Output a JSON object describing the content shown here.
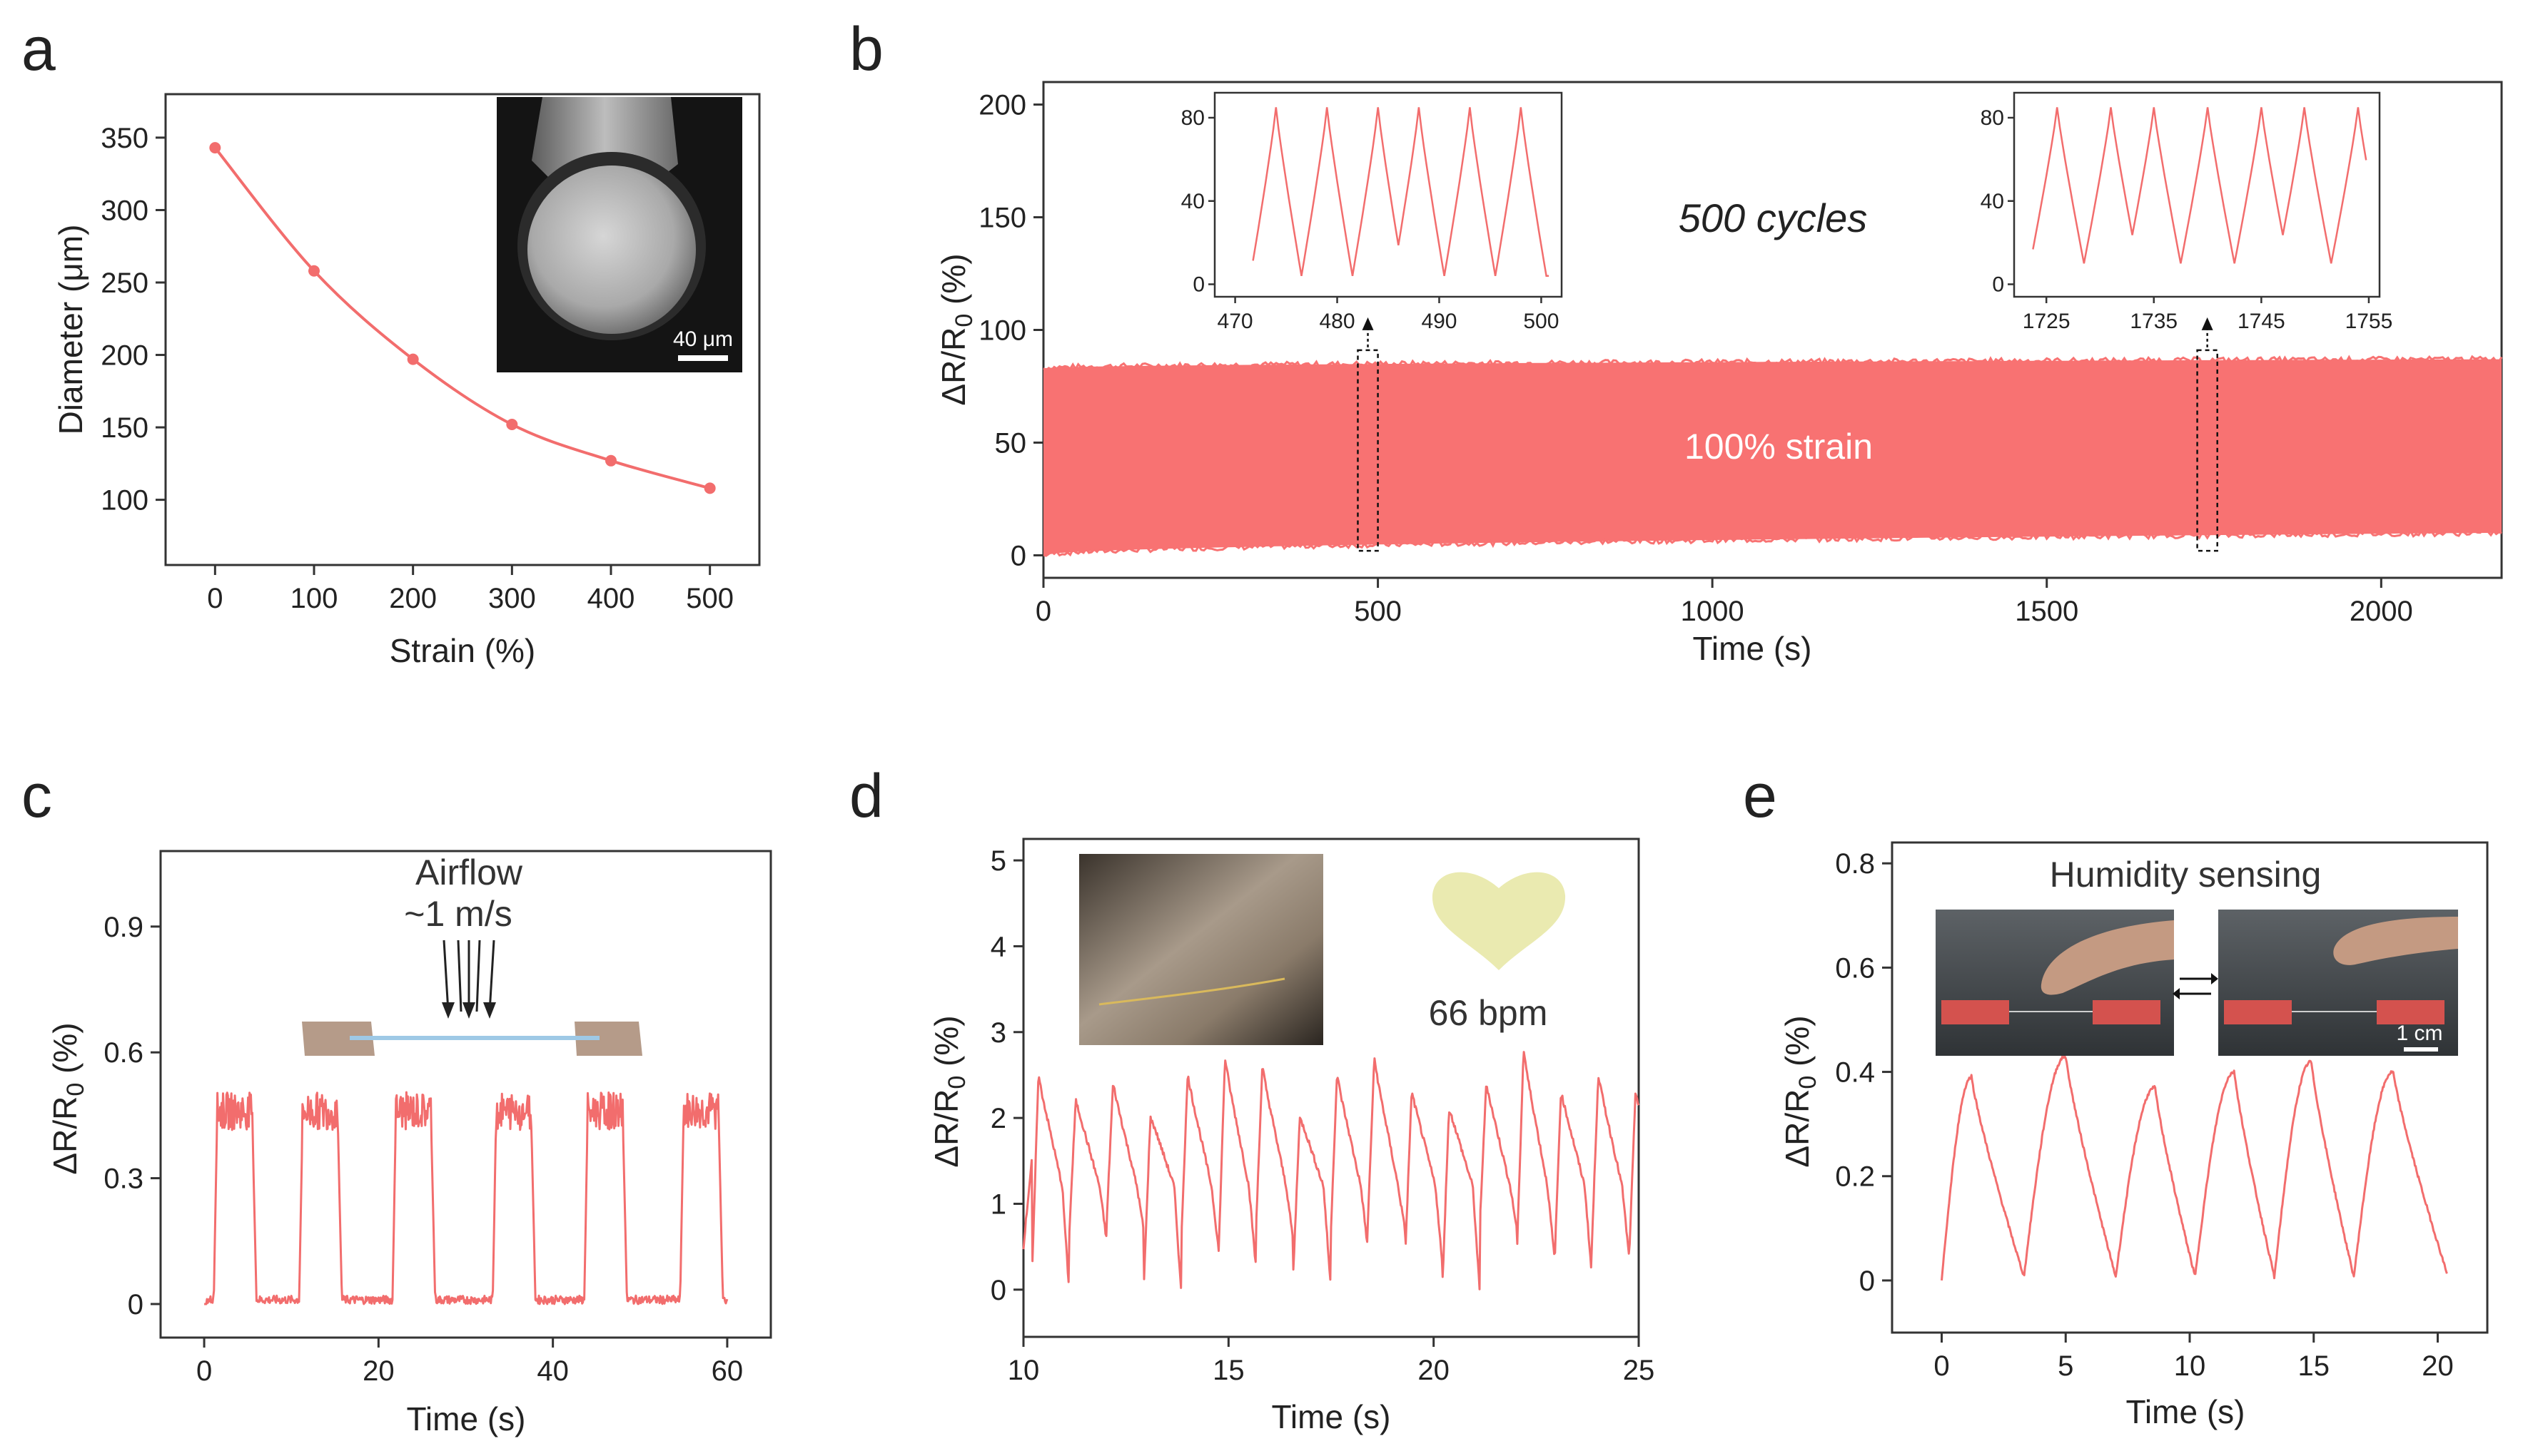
{
  "colors": {
    "series": "#f26d6d",
    "fill": "#f87272",
    "axis": "#333333",
    "heart": "#eaeab0"
  },
  "chart_data": [
    {
      "id": "a",
      "panel_label": "a",
      "type": "line",
      "xlabel": "Strain (%)",
      "ylabel": "Diameter (μm)",
      "x": [
        0,
        100,
        200,
        300,
        400,
        500
      ],
      "y": [
        343,
        258,
        197,
        152,
        127,
        108
      ],
      "xlim": [
        -50,
        550
      ],
      "ylim": [
        55,
        380
      ],
      "xticks": [
        "0",
        "100",
        "200",
        "300",
        "400",
        "500"
      ],
      "yticks": [
        "100",
        "150",
        "200",
        "250",
        "300",
        "350"
      ],
      "inset": {
        "kind": "SEM micrograph of fiber cross-section",
        "scalebar_label": "40 μm"
      }
    },
    {
      "id": "b",
      "panel_label": "b",
      "type": "area",
      "xlabel": "Time (s)",
      "ylabel_main": "ΔR/R",
      "ylabel_sub": "0",
      "ylabel_unit": " (%)",
      "xlim": [
        0,
        2180
      ],
      "ylim": [
        -10,
        210
      ],
      "xticks": [
        "0",
        "500",
        "1000",
        "1500",
        "2000"
      ],
      "yticks": [
        "0",
        "50",
        "100",
        "150",
        "200"
      ],
      "band": {
        "lower_start": 0,
        "lower_end": 10,
        "upper_start": 83,
        "upper_end": 87
      },
      "annotation_cycles": "500 cycles",
      "annotation_strain": "100% strain",
      "zoom_boxes": [
        [
          470,
          500
        ],
        [
          1725,
          1755
        ]
      ],
      "insets": [
        {
          "x_range": [
            468,
            502
          ],
          "peak_times": [
            474,
            479,
            484,
            488,
            493,
            498
          ],
          "peak": 85,
          "trough": 4,
          "xticks": [
            "470",
            "480",
            "490",
            "500"
          ],
          "yticks": [
            "0",
            "40",
            "80"
          ]
        },
        {
          "x_range": [
            1722,
            1756
          ],
          "peak_times": [
            1726,
            1731,
            1735,
            1740,
            1745,
            1749,
            1754
          ],
          "peak": 85,
          "trough": 10,
          "xticks": [
            "1725",
            "1735",
            "1745",
            "1755"
          ],
          "yticks": [
            "0",
            "40",
            "80"
          ]
        }
      ]
    },
    {
      "id": "c",
      "panel_label": "c",
      "type": "line",
      "xlabel": "Time (s)",
      "ylabel_main": "ΔR/R",
      "ylabel_sub": "0",
      "ylabel_unit": " (%)",
      "xlim": [
        -5,
        65
      ],
      "ylim": [
        -0.08,
        1.08
      ],
      "xticks": [
        "0",
        "20",
        "40",
        "60"
      ],
      "yticks": [
        "0",
        "0.3",
        "0.6",
        "0.9"
      ],
      "pulses_on_off": [
        [
          1.5,
          5.5
        ],
        [
          11.3,
          15.3
        ],
        [
          22,
          26
        ],
        [
          33.5,
          37.5
        ],
        [
          44,
          48
        ],
        [
          55,
          59
        ]
      ],
      "baseline": 0.01,
      "plateau": 0.46,
      "annotation_line1": "Airflow",
      "annotation_line2": "~1 m/s"
    },
    {
      "id": "d",
      "panel_label": "d",
      "type": "line",
      "xlabel": "Time (s)",
      "ylabel_main": "ΔR/R",
      "ylabel_sub": "0",
      "ylabel_unit": " (%)",
      "xlim": [
        10,
        25
      ],
      "ylim": [
        -0.55,
        5.25
      ],
      "xticks": [
        "10",
        "15",
        "20",
        "25"
      ],
      "yticks": [
        "0",
        "1",
        "2",
        "3",
        "4",
        "5"
      ],
      "heart_rate_label": "66 bpm",
      "beat_period_s": 0.91
    },
    {
      "id": "e",
      "panel_label": "e",
      "type": "line",
      "xlabel": "Time (s)",
      "ylabel_main": "ΔR/R",
      "ylabel_sub": "0",
      "ylabel_unit": " (%)",
      "xlim": [
        -2,
        22
      ],
      "ylim": [
        -0.1,
        0.84
      ],
      "xticks": [
        "0",
        "5",
        "10",
        "15",
        "20"
      ],
      "yticks": [
        "0",
        "0.2",
        "0.4",
        "0.6",
        "0.8"
      ],
      "title": "Humidity sensing",
      "cycles": [
        [
          0,
          1.2,
          0.39
        ],
        [
          3.3,
          5.0,
          0.43
        ],
        [
          7.0,
          8.6,
          0.37
        ],
        [
          10.2,
          11.8,
          0.4
        ],
        [
          13.4,
          14.9,
          0.42
        ],
        [
          16.6,
          18.2,
          0.4
        ]
      ],
      "inset_scalebar_label": "1 cm"
    }
  ]
}
